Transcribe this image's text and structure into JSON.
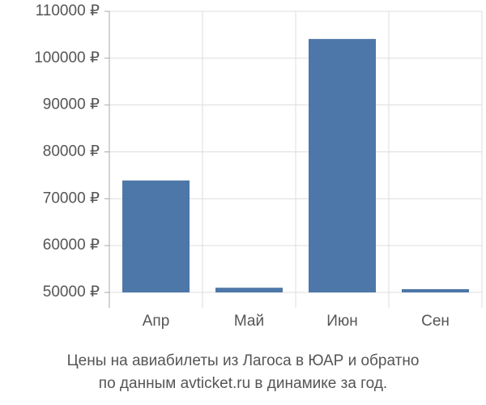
{
  "chart_data": {
    "type": "bar",
    "title": "Цены на авиабилеты из Лагоса в ЮАР и обратно",
    "subtitle": "по данным avticket.ru в динамике за год.",
    "categories": [
      "Апр",
      "Май",
      "Июн",
      "Сен"
    ],
    "values": [
      73900,
      51000,
      104100,
      50700
    ],
    "color": "#4d77a8",
    "ylim": [
      50000,
      110000
    ],
    "yticks": [
      {
        "value": 50000,
        "label": "50000 ₽"
      },
      {
        "value": 60000,
        "label": "60000 ₽"
      },
      {
        "value": 70000,
        "label": "70000 ₽"
      },
      {
        "value": 80000,
        "label": "80000 ₽"
      },
      {
        "value": 90000,
        "label": "90000 ₽"
      },
      {
        "value": 100000,
        "label": "100000 ₽"
      },
      {
        "value": 110000,
        "label": "110000 ₽"
      }
    ],
    "grid": true
  }
}
